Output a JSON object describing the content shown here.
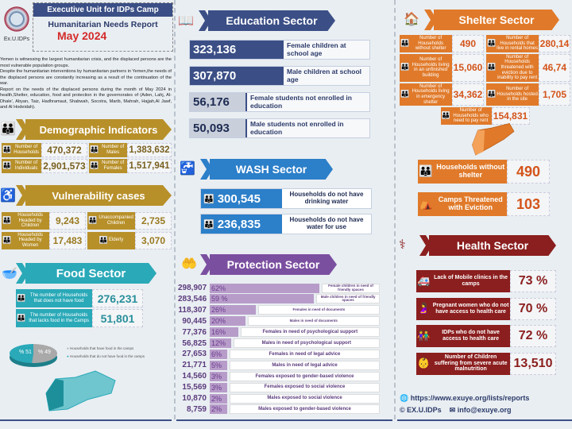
{
  "header": {
    "org": "Executive Unit for IDPs Camp",
    "title": "Humanitarian Needs Report",
    "month": "May 2024",
    "logo_text": "Ex.U.IDPs",
    "intro": [
      "Yemen is witnessing the largest humanitarian crisis, and the displaced persons are the most vulnerable population groups.",
      "Despite the humanitarian interventions by humanitarian partners in Yemen,the needs of the displaced persons are constantly increasing as a result of the continuation of the war.",
      "Report on the needs of the displaced persons during the month of May 2024 in health,Shelter, education, food and protection in the governorates of (Aden, Lahj, Al-Dhale', Abyan, Taiz, Hadhramaut, Shabwah, Socotra, Marib, Mahrah, Hajjah,Al Jawf, and Al Hodeidah)."
    ]
  },
  "demographic": {
    "title": "Demographic Indicators",
    "color": "#b8902a",
    "items": [
      {
        "label": "Number of Households",
        "value": "470,372"
      },
      {
        "label": "Number of Males",
        "value": "1,383,632"
      },
      {
        "label": "Number of Individuals",
        "value": "2,901,573"
      },
      {
        "label": "Number of Females",
        "value": "1,517,941"
      }
    ]
  },
  "vulnerability": {
    "title": "Vulnerability cases",
    "items": [
      {
        "label": "Households Headed by Children",
        "value": "9,243"
      },
      {
        "label": "Unaccompanied Children",
        "value": "2,735"
      },
      {
        "label": "Households Headed by Women",
        "value": "17,483"
      },
      {
        "label": "Elderly",
        "value": "3,070"
      }
    ]
  },
  "food": {
    "title": "Food Sector",
    "color": "#2aa9b8",
    "items": [
      {
        "label": "The number of Households that does not have food",
        "value": "276,231"
      },
      {
        "label": "The number of Households that lacks food in the Camps",
        "value": "51,801"
      }
    ],
    "pie": [
      {
        "label": "% 51",
        "legend": "Households that have food in the camps",
        "value": 51,
        "color": "#a9a9a9"
      },
      {
        "label": "% 49",
        "legend": "Households that do not have food in the camps",
        "value": 49,
        "color": "#2aa9b8"
      }
    ]
  },
  "education": {
    "title": "Education Sector",
    "items": [
      {
        "value": "323,136",
        "label": "Female children at school age"
      },
      {
        "value": "307,870",
        "label": "Male children at school age"
      },
      {
        "value": "56,176",
        "label": "Female students not enrolled in education"
      },
      {
        "value": "50,093",
        "label": "Male students not enrolled in education"
      }
    ]
  },
  "wash": {
    "title": "WASH Sector",
    "items": [
      {
        "value": "300,545",
        "label": "Households do not have drinking water"
      },
      {
        "value": "236,835",
        "label": "Households do not have water for use"
      }
    ]
  },
  "protection": {
    "title": "Protection Sector",
    "items": [
      {
        "value": "298,907",
        "pct": "62%",
        "p": 62,
        "label": "Female children in need of friendly spaces"
      },
      {
        "value": "283,546",
        "pct": "59 %",
        "p": 59,
        "label": "Male children in need of friendly spaces"
      },
      {
        "value": "118,307",
        "pct": "26%",
        "p": 26,
        "label": "Females in need of documents"
      },
      {
        "value": "90,445",
        "pct": "20%",
        "p": 20,
        "label": "Males in need of documents"
      },
      {
        "value": "77,376",
        "pct": "16%",
        "p": 16,
        "label": "Females in need of psychological support"
      },
      {
        "value": "56,825",
        "pct": "12%",
        "p": 12,
        "label": "Males in need of psychological support"
      },
      {
        "value": "27,653",
        "pct": "6%",
        "p": 6,
        "label": "Females in need of legal advice"
      },
      {
        "value": "21,771",
        "pct": "5%",
        "p": 5,
        "label": "Males in need of legal advice"
      },
      {
        "value": "14,560",
        "pct": "3%",
        "p": 3,
        "label": "Females exposed to gender-based violence"
      },
      {
        "value": "15,569",
        "pct": "3%",
        "p": 3,
        "label": "Females exposed to social violence"
      },
      {
        "value": "10,870",
        "pct": "2%",
        "p": 2,
        "label": "Males exposed to social violence"
      },
      {
        "value": "8,759",
        "pct": "2%",
        "p": 2,
        "label": "Males exposed to gender-based violence"
      }
    ]
  },
  "shelter": {
    "title": "Shelter Sector",
    "items": [
      {
        "label": "Number of Households without shelter",
        "value": "490"
      },
      {
        "label": "Number of Households that live in rental homes",
        "value": "280,14"
      },
      {
        "label": "Number of Households living in an unfinished building",
        "value": "15,060"
      },
      {
        "label": "Number of Households threatened with eviction due to inability to pay rent",
        "value": "46,74"
      },
      {
        "label": "Number of Households living in emergency shelter",
        "value": "34,362"
      },
      {
        "label": "Number of Households hosted in the site",
        "value": "1,705"
      },
      {
        "label": "Number of Households who need to pay rent",
        "value": "154,831"
      }
    ],
    "big": [
      {
        "label": "Households without shelter",
        "value": "490"
      },
      {
        "label": "Camps Threatened with Eviction",
        "value": "103"
      }
    ]
  },
  "health": {
    "title": "Health Sector",
    "items": [
      {
        "label": "Lack of Mobile clinics in the camps",
        "value": "73 %"
      },
      {
        "label": "Pregnant women who do not have access to health care",
        "value": "70 %"
      },
      {
        "label": "IDPs who do not have access to health care",
        "value": "72 %"
      },
      {
        "label": "Number of Children suffering from severe acute malnutrition",
        "value": "13,510"
      }
    ]
  },
  "footer": {
    "url": "https://www.exuye.org/lists/reports",
    "handle": "EX.U.IDPs",
    "email": "info@exuye.org"
  }
}
